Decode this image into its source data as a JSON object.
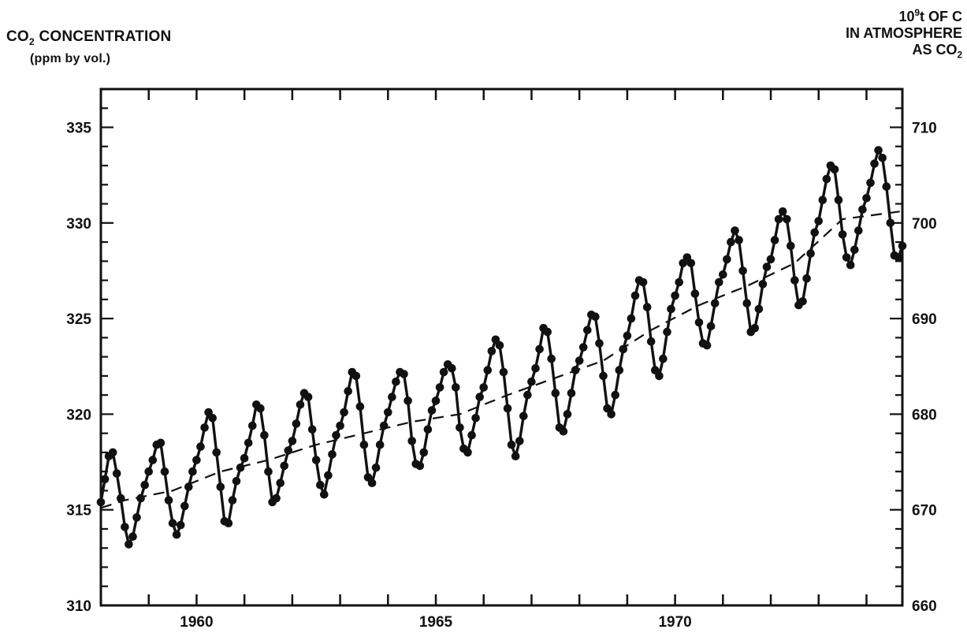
{
  "chart_data": {
    "type": "line",
    "left_axis": {
      "label_main": "CO",
      "label_sub": "2",
      "label_rest": " CONCENTRATION",
      "label_units": "(ppm by vol.)",
      "ylim": [
        310,
        337
      ],
      "ticks": [
        310,
        315,
        320,
        325,
        330,
        335
      ]
    },
    "right_axis": {
      "label_line1_base": "10",
      "label_line1_sup": "9",
      "label_line1_rest": "t OF C",
      "label_line2": "IN ATMOSPHERE",
      "label_line3_base": "AS CO",
      "label_line3_sub": "2",
      "ticks": [
        660,
        670,
        680,
        690,
        700,
        710
      ],
      "conversion": {
        "ppm_at_660": 310,
        "ppm_per_unit": 0.5
      }
    },
    "x_axis": {
      "xlim": [
        1958.0,
        1974.75
      ],
      "ticks": [
        1960,
        1965,
        1970
      ]
    },
    "grid": false,
    "series": [
      {
        "style": "solid-with-markers",
        "t0": 1958.0,
        "dt": 0.0833333,
        "values": [
          315.4,
          316.6,
          317.8,
          318.0,
          316.9,
          315.6,
          314.1,
          313.2,
          313.6,
          314.6,
          315.6,
          316.3,
          317.0,
          317.6,
          318.4,
          318.5,
          317.0,
          315.5,
          314.3,
          313.7,
          314.2,
          315.2,
          316.2,
          317.0,
          317.6,
          318.3,
          319.3,
          320.1,
          319.8,
          318.0,
          316.2,
          314.4,
          314.3,
          315.5,
          316.5,
          317.2,
          317.7,
          318.5,
          319.4,
          320.5,
          320.3,
          318.9,
          317.0,
          315.4,
          315.6,
          316.4,
          317.3,
          318.1,
          318.6,
          319.5,
          320.5,
          321.1,
          320.9,
          319.2,
          317.6,
          316.3,
          315.8,
          316.8,
          317.9,
          318.9,
          319.4,
          320.1,
          321.2,
          322.2,
          322.0,
          320.4,
          318.4,
          316.7,
          316.4,
          317.2,
          318.4,
          319.4,
          320.1,
          320.9,
          321.7,
          322.2,
          322.1,
          320.7,
          318.6,
          317.4,
          317.3,
          318.0,
          319.2,
          320.2,
          320.7,
          321.4,
          322.2,
          322.6,
          322.4,
          321.4,
          319.3,
          318.2,
          318.0,
          318.9,
          319.8,
          320.9,
          321.4,
          322.3,
          323.3,
          323.9,
          323.6,
          322.2,
          320.3,
          318.4,
          317.8,
          318.6,
          319.9,
          321.0,
          321.7,
          322.4,
          323.4,
          324.5,
          324.3,
          322.9,
          321.1,
          319.3,
          319.1,
          320.0,
          321.1,
          322.3,
          322.8,
          323.5,
          324.4,
          325.2,
          325.1,
          323.7,
          322.0,
          320.3,
          320.0,
          321.0,
          322.3,
          323.4,
          324.1,
          325.0,
          326.2,
          327.0,
          326.9,
          325.6,
          323.8,
          322.3,
          322.0,
          322.9,
          324.3,
          325.5,
          326.2,
          326.9,
          327.9,
          328.2,
          327.9,
          326.3,
          324.8,
          323.7,
          323.6,
          324.6,
          325.8,
          326.9,
          327.3,
          328.1,
          329.0,
          329.6,
          329.1,
          327.5,
          325.8,
          324.3,
          324.5,
          325.5,
          326.8,
          327.7,
          328.1,
          329.1,
          330.2,
          330.6,
          330.2,
          328.8,
          327.0,
          325.7,
          325.9,
          327.1,
          328.4,
          329.5,
          330.1,
          331.2,
          332.3,
          333.0,
          332.8,
          331.2,
          329.4,
          328.2,
          327.8,
          328.6,
          329.6,
          330.7,
          331.3,
          332.1,
          333.1,
          333.8,
          333.4,
          331.9,
          330.0,
          328.3,
          328.2,
          328.8
        ]
      },
      {
        "style": "dashed-annual-mean",
        "points": [
          [
            1958.0,
            315.1
          ],
          [
            1958.5,
            315.5
          ],
          [
            1959.5,
            316.0
          ],
          [
            1960.5,
            317.0
          ],
          [
            1961.5,
            317.6
          ],
          [
            1962.5,
            318.4
          ],
          [
            1963.5,
            319.0
          ],
          [
            1964.5,
            319.6
          ],
          [
            1965.5,
            320.0
          ],
          [
            1966.5,
            321.0
          ],
          [
            1967.5,
            321.9
          ],
          [
            1968.5,
            322.8
          ],
          [
            1969.5,
            324.4
          ],
          [
            1970.5,
            325.7
          ],
          [
            1971.5,
            326.7
          ],
          [
            1972.5,
            327.9
          ],
          [
            1973.5,
            330.2
          ],
          [
            1974.7,
            330.6
          ]
        ]
      }
    ]
  }
}
